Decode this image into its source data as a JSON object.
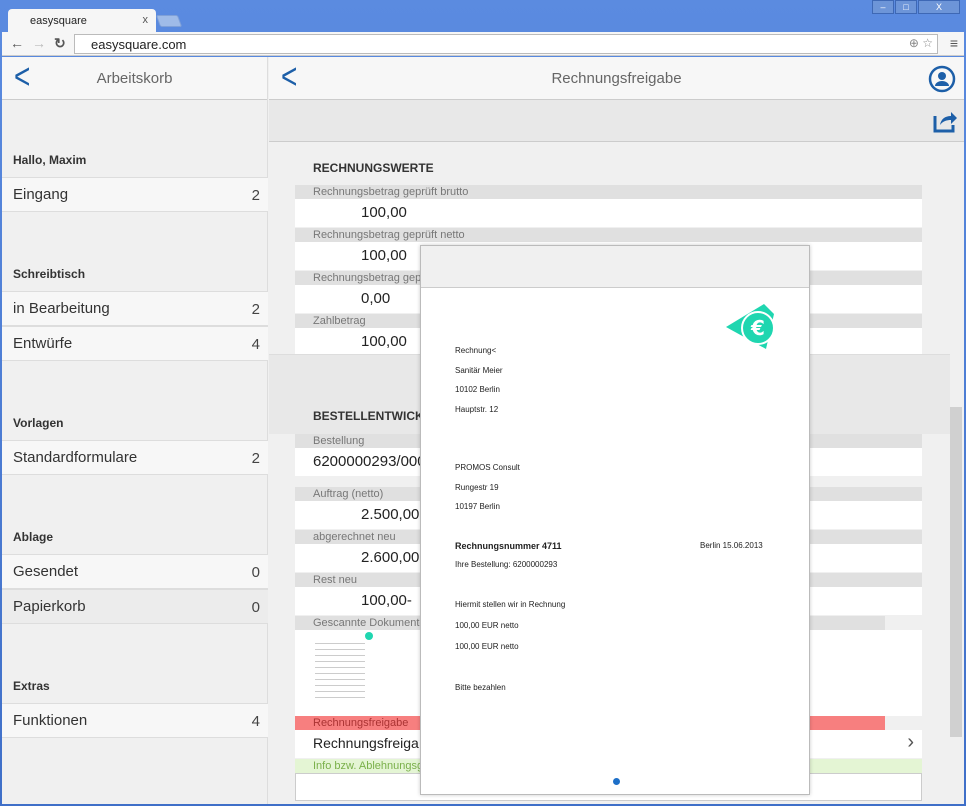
{
  "browser": {
    "tab_title": "easysquare",
    "tab_close": "x",
    "url": "easysquare.com",
    "window_buttons": [
      "–",
      "□",
      "X"
    ]
  },
  "left": {
    "title": "Arbeitskorb",
    "greeting": "Hallo, Maxim",
    "sections": [
      {
        "title": "",
        "items": [
          {
            "label": "Eingang",
            "count": "2"
          }
        ]
      },
      {
        "title": "Schreibtisch",
        "items": [
          {
            "label": "in Bearbeitung",
            "count": "2"
          },
          {
            "label": "Entwürfe",
            "count": "4"
          }
        ]
      },
      {
        "title": "Vorlagen",
        "items": [
          {
            "label": "Standardformulare",
            "count": "2"
          }
        ]
      },
      {
        "title": "Ablage",
        "items": [
          {
            "label": "Gesendet",
            "count": "0"
          },
          {
            "label": "Papierkorb",
            "count": "0"
          }
        ]
      },
      {
        "title": "Extras",
        "items": [
          {
            "label": "Funktionen",
            "count": "4"
          }
        ]
      }
    ]
  },
  "right": {
    "title": "Rechnungsfreigabe",
    "rechnungswerte": {
      "title": "RECHNUNGSWERTE",
      "fields": [
        {
          "label": "Rechnungsbetrag geprüft brutto",
          "value": "100,00"
        },
        {
          "label": "Rechnungsbetrag geprüft netto",
          "value": "100,00"
        },
        {
          "label": "Rechnungsbetrag geprü",
          "value": "0,00"
        },
        {
          "label": "Zahlbetrag",
          "value": "100,00"
        }
      ]
    },
    "bestell": {
      "title": "BESTELLENTWICKLU",
      "fields": [
        {
          "label": "Bestellung",
          "value": "6200000293/000"
        },
        {
          "label": "Auftrag (netto)",
          "value": "2.500,00"
        },
        {
          "label": "abgerechnet neu",
          "value": "2.600,00"
        },
        {
          "label": "Rest neu",
          "value": "100,00-"
        }
      ]
    },
    "scanned_label": "Gescannte Dokumente",
    "freigabe_label": "Rechnungsfreigabe",
    "freigabe_value": "Rechnungsfreiga",
    "info_label": "Info bzw. Ablehnungsgr",
    "colors": {
      "freigabe": "#f77f7f",
      "info": "#e4f5d4",
      "accent": "#1d5fa8",
      "logo": "#1fd6b0"
    }
  },
  "document": {
    "lines": [
      "Rechnung<",
      "Sanitär Meier",
      "10102  Berlin",
      "Hauptstr. 12",
      "PROMOS Consult",
      "Rungestr 19",
      "10197  Berlin"
    ],
    "number": "Rechnungsnummer   4711",
    "date": "Berlin  15.06.2013",
    "order": "Ihre Bestellung: 6200000293",
    "body": [
      "Hiermit stellen wir in Rechnung",
      "100,00 EUR netto",
      "100,00 EUR netto",
      "Bitte bezahlen"
    ]
  }
}
